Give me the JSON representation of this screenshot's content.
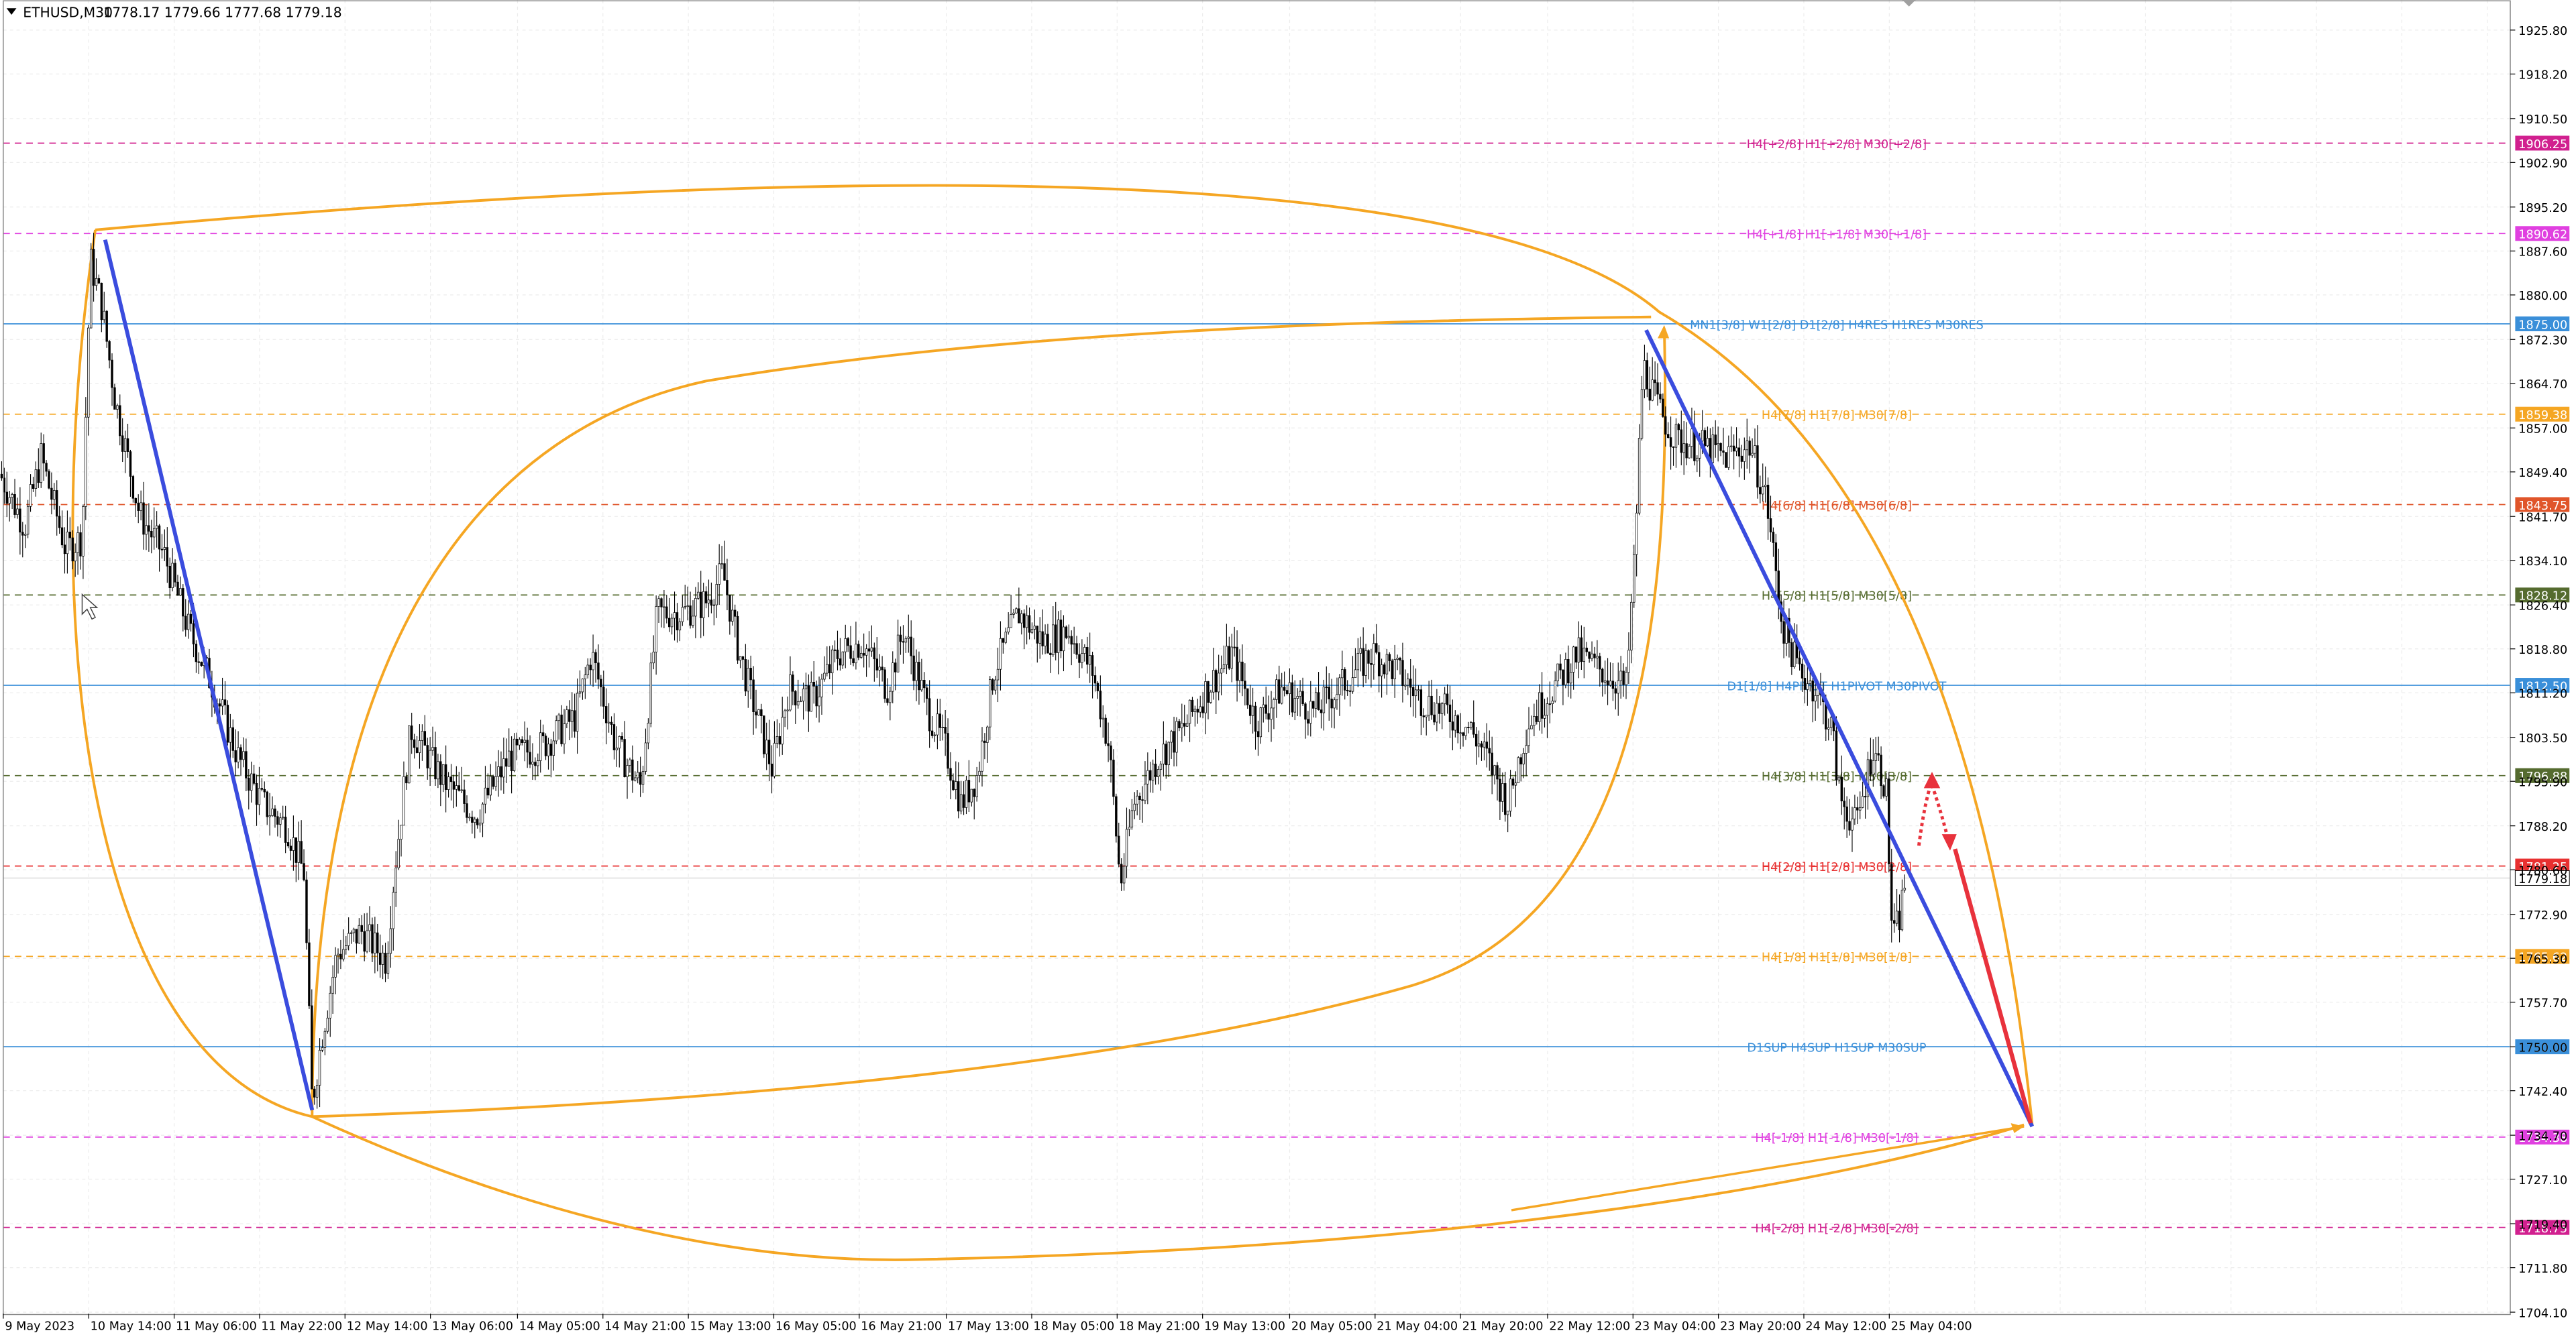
{
  "header": {
    "symbol": "ETHUSD,M30",
    "ohlc": "1778.17 1779.66 1777.68 1779.18"
  },
  "colors": {
    "grid": "#ececec",
    "candle": "#000000",
    "axis_text": "#000000",
    "blue_trend": "#3a4cde",
    "orange_arc": "#f5a623",
    "red_arrow": "#e8323c"
  },
  "chart_data": {
    "type": "candlestick",
    "title": "",
    "xlabel": "",
    "ylabel": "",
    "ylim": [
      1701.0,
      1931.0
    ],
    "grid": true,
    "y_ticks": [
      1925.8,
      1918.2,
      1910.5,
      1902.9,
      1895.2,
      1887.6,
      1880.0,
      1872.3,
      1864.7,
      1857.0,
      1849.4,
      1841.7,
      1834.1,
      1826.4,
      1818.8,
      1811.2,
      1803.5,
      1795.9,
      1788.2,
      1780.6,
      1772.9,
      1765.3,
      1757.7,
      1750.0,
      1742.4,
      1734.7,
      1727.1,
      1719.4,
      1711.8,
      1704.1
    ],
    "y_tick_labels": [
      "1925.80",
      "1918.20",
      "1910.50",
      "1902.90",
      "1895.20",
      "1887.60",
      "1880.00",
      "1872.30",
      "1864.70",
      "1857.00",
      "1849.40",
      "1841.70",
      "1834.10",
      "1826.40",
      "1818.80",
      "1811.20",
      "1803.50",
      "1795.90",
      "1788.20",
      "1780.60",
      "1772.90",
      "1765.30",
      "1757.70",
      "1750.00",
      "1742.40",
      "1734.70",
      "1727.10",
      "1719.40",
      "1711.80",
      "1704.10"
    ],
    "x_labels": [
      "9 May 2023",
      "10 May 14:00",
      "11 May 06:00",
      "11 May 22:00",
      "12 May 14:00",
      "13 May 06:00",
      "14 May 05:00",
      "14 May 21:00",
      "15 May 13:00",
      "16 May 05:00",
      "16 May 21:00",
      "17 May 13:00",
      "18 May 05:00",
      "18 May 21:00",
      "19 May 13:00",
      "20 May 05:00",
      "21 May 04:00",
      "21 May 20:00",
      "22 May 12:00",
      "23 May 04:00",
      "23 May 20:00",
      "24 May 12:00",
      "25 May 04:00"
    ],
    "current_price": 1779.18,
    "price_path": [
      [
        0,
        1849
      ],
      [
        15,
        1840
      ],
      [
        25,
        1852
      ],
      [
        40,
        1836
      ],
      [
        50,
        1838
      ],
      [
        55,
        1886
      ],
      [
        62,
        1878
      ],
      [
        70,
        1862
      ],
      [
        85,
        1842
      ],
      [
        100,
        1835
      ],
      [
        115,
        1822
      ],
      [
        130,
        1812
      ],
      [
        145,
        1800
      ],
      [
        160,
        1792
      ],
      [
        175,
        1788
      ],
      [
        185,
        1780
      ],
      [
        190,
        1740
      ],
      [
        196,
        1752
      ],
      [
        205,
        1766
      ],
      [
        220,
        1770
      ],
      [
        235,
        1765
      ],
      [
        240,
        1780
      ],
      [
        250,
        1805
      ],
      [
        270,
        1796
      ],
      [
        290,
        1790
      ],
      [
        310,
        1800
      ],
      [
        330,
        1802
      ],
      [
        350,
        1807
      ],
      [
        360,
        1818
      ],
      [
        375,
        1802
      ],
      [
        390,
        1795
      ],
      [
        400,
        1825
      ],
      [
        415,
        1825
      ],
      [
        430,
        1827
      ],
      [
        440,
        1832
      ],
      [
        450,
        1818
      ],
      [
        460,
        1808
      ],
      [
        470,
        1798
      ],
      [
        480,
        1812
      ],
      [
        495,
        1810
      ],
      [
        510,
        1818
      ],
      [
        525,
        1820
      ],
      [
        540,
        1812
      ],
      [
        550,
        1822
      ],
      [
        565,
        1808
      ],
      [
        575,
        1802
      ],
      [
        585,
        1792
      ],
      [
        595,
        1797
      ],
      [
        605,
        1815
      ],
      [
        620,
        1825
      ],
      [
        635,
        1820
      ],
      [
        650,
        1822
      ],
      [
        665,
        1815
      ],
      [
        675,
        1802
      ],
      [
        682,
        1778
      ],
      [
        690,
        1792
      ],
      [
        705,
        1800
      ],
      [
        720,
        1805
      ],
      [
        735,
        1812
      ],
      [
        750,
        1818
      ],
      [
        765,
        1806
      ],
      [
        780,
        1812
      ],
      [
        800,
        1808
      ],
      [
        815,
        1812
      ],
      [
        825,
        1815
      ],
      [
        835,
        1818
      ],
      [
        850,
        1815
      ],
      [
        865,
        1810
      ],
      [
        880,
        1808
      ],
      [
        895,
        1805
      ],
      [
        905,
        1800
      ],
      [
        918,
        1792
      ],
      [
        930,
        1806
      ],
      [
        945,
        1812
      ],
      [
        960,
        1818
      ],
      [
        975,
        1815
      ],
      [
        990,
        1812
      ],
      [
        995,
        1835
      ],
      [
        1000,
        1868
      ],
      [
        1010,
        1860
      ],
      [
        1020,
        1855
      ],
      [
        1035,
        1854
      ],
      [
        1050,
        1852
      ],
      [
        1065,
        1854
      ],
      [
        1075,
        1845
      ],
      [
        1085,
        1823
      ],
      [
        1095,
        1815
      ],
      [
        1105,
        1812
      ],
      [
        1115,
        1805
      ],
      [
        1120,
        1793
      ],
      [
        1130,
        1788
      ],
      [
        1140,
        1802
      ],
      [
        1148,
        1795
      ],
      [
        1152,
        1768
      ],
      [
        1156,
        1772
      ],
      [
        1160,
        1779.18
      ]
    ],
    "levels": [
      {
        "price": 1906.25,
        "tag": "1906.25",
        "label": "H4[+2/8] H1[+2/8] M30[+2/8]",
        "color": "#d1208f",
        "style": "dash"
      },
      {
        "price": 1890.62,
        "tag": "1890.62",
        "label": "H4[+1/8] H1[+1/8] M30[+1/8]",
        "color": "#e040e0",
        "style": "dash"
      },
      {
        "price": 1875.0,
        "tag": "1875.00",
        "label": "MN1[3/8] W1[2/8] D1[2/8] H4RES H1RES M30RES",
        "color": "#3a8fd9",
        "style": "solid"
      },
      {
        "price": 1859.38,
        "tag": "1859.38",
        "label": "H4[7/8] H1[7/8] M30[7/8]",
        "color": "#f5a623",
        "style": "dash"
      },
      {
        "price": 1843.75,
        "tag": "1843.75",
        "label": "H4[6/8] H1[6/8] M30[6/8]",
        "color": "#e0552a",
        "style": "dash"
      },
      {
        "price": 1828.12,
        "tag": "1828.12",
        "label": "H4[5/8] H1[5/8] M30[5/8]",
        "color": "#556b2f",
        "style": "dash"
      },
      {
        "price": 1812.5,
        "tag": "1812.50",
        "label": "D1[1/8] H4PIVOT H1PIVOT M30PIVOT",
        "color": "#3a8fd9",
        "style": "solid"
      },
      {
        "price": 1796.88,
        "tag": "1796.88",
        "label": "H4[3/8] H1[3/8] M30[3/8]",
        "color": "#556b2f",
        "style": "dash"
      },
      {
        "price": 1781.25,
        "tag": "1781.25",
        "label": "H4[2/8] H1[2/8] M30[2/8]",
        "color": "#e83030",
        "style": "dash"
      },
      {
        "price": 1765.62,
        "tag": "1765.62",
        "label": "H4[1/8] H1[1/8] M30[1/8]",
        "color": "#f5a623",
        "style": "dash"
      },
      {
        "price": 1750.0,
        "tag": "1750.00",
        "label": "D1SUP H4SUP H1SUP M30SUP",
        "color": "#3a8fd9",
        "style": "solid"
      },
      {
        "price": 1734.38,
        "tag": "1734.38",
        "label": "H4[-1/8] H1[-1/8] M30[-1/8]",
        "color": "#e040e0",
        "style": "dash"
      },
      {
        "price": 1718.75,
        "tag": "1718.75",
        "label": "H4[-2/8] H1[-2/8] M30[-2/8]",
        "color": "#d1208f",
        "style": "dash"
      }
    ]
  }
}
